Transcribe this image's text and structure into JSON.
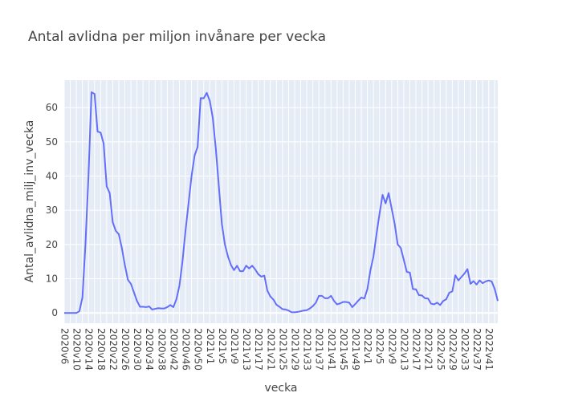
{
  "chart_data": {
    "type": "line",
    "title": "Antal avlidna per miljon invånare per vecka",
    "xlabel": "vecka",
    "ylabel": "Antal_avlidna_milj_inv_vecka",
    "ylim": [
      -3,
      68
    ],
    "yticks": [
      0,
      10,
      20,
      30,
      40,
      50,
      60
    ],
    "grid": true,
    "line_color": "#636efa",
    "plot_bg": "#e5ecf6",
    "x_tick_labels": [
      "2020v6",
      "2020v10",
      "2020v14",
      "2020v18",
      "2020v22",
      "2020v26",
      "2020v30",
      "2020v34",
      "2020v38",
      "2020v42",
      "2020v46",
      "2020v50",
      "2021v1",
      "2021v5",
      "2021v9",
      "2021v13",
      "2021v17",
      "2021v21",
      "2021v25",
      "2021v29",
      "2021v33",
      "2021v37",
      "2021v41",
      "2021v45",
      "2021v49",
      "2022v1",
      "2022v5",
      "2022v9",
      "2022v13",
      "2022v17",
      "2022v21",
      "2022v25",
      "2022v29",
      "2022v33",
      "2022v37",
      "2022v41"
    ],
    "series": [
      {
        "values": [
          0,
          0,
          0,
          0,
          0,
          0.5,
          4.5,
          20,
          40,
          64.5,
          64,
          53,
          52.7,
          49.5,
          37,
          35,
          26.5,
          24,
          23,
          19,
          14,
          9.7,
          8.5,
          6,
          3.5,
          1.8,
          1.8,
          1.7,
          1.9,
          1.0,
          1.2,
          1.4,
          1.3,
          1.3,
          1.7,
          2.3,
          1.7,
          4,
          8,
          15,
          24,
          32,
          40,
          46,
          48.5,
          62.8,
          62.7,
          64.3,
          62,
          57,
          48,
          37,
          26,
          20,
          16.5,
          14,
          12.5,
          13.8,
          12.2,
          12.2,
          13.8,
          13,
          13.8,
          12.7,
          11.3,
          10.6,
          10.9,
          6.5,
          4.8,
          3.9,
          2.4,
          1.8,
          1.1,
          1.0,
          0.7,
          0.2,
          0.2,
          0.3,
          0.5,
          0.7,
          0.8,
          1.3,
          2,
          3,
          5,
          5,
          4.3,
          4.3,
          5,
          3.5,
          2.5,
          2.8,
          3.2,
          3.2,
          3,
          1.7,
          2.6,
          3.6,
          4.5,
          4.2,
          7,
          12.5,
          16.5,
          23,
          29,
          34.5,
          32,
          35,
          30.5,
          26,
          20,
          19,
          15.5,
          12,
          11.8,
          7,
          6.9,
          5.2,
          5.1,
          4.3,
          4.2,
          2.7,
          2.5,
          3,
          2.3,
          3.5,
          4,
          5.9,
          6.3,
          11,
          9.5,
          10.5,
          11.5,
          12.8,
          8.5,
          9.3,
          8.3,
          9.5,
          8.7,
          9.2,
          9.5,
          9.2,
          7,
          3.5
        ]
      }
    ]
  }
}
